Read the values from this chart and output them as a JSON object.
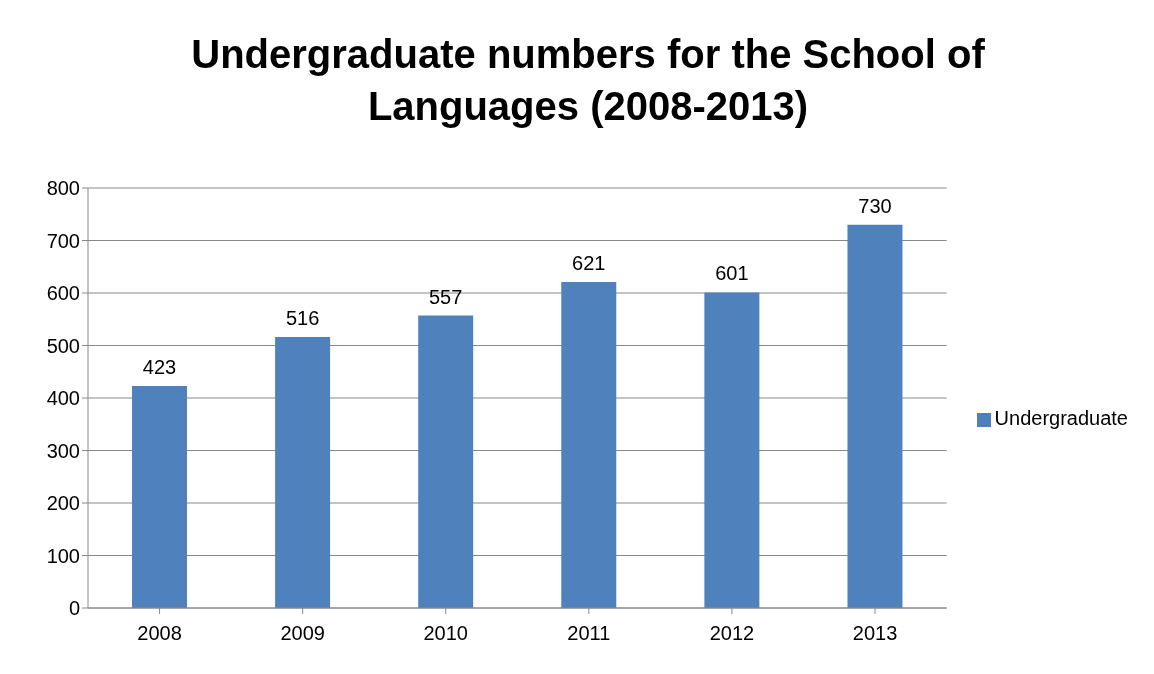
{
  "chart_data": {
    "type": "bar",
    "title": "Undergraduate numbers for the School of Languages (2008-2013)",
    "categories": [
      "2008",
      "2009",
      "2010",
      "2011",
      "2012",
      "2013"
    ],
    "series": [
      {
        "name": "Undergraduate",
        "color": "#4f81bd",
        "values": [
          423,
          516,
          557,
          621,
          601,
          730
        ]
      }
    ],
    "ylim": [
      0,
      800
    ],
    "yticks": [
      0,
      100,
      200,
      300,
      400,
      500,
      600,
      700,
      800
    ],
    "grid": "y",
    "legend": "right",
    "data_labels": true
  }
}
